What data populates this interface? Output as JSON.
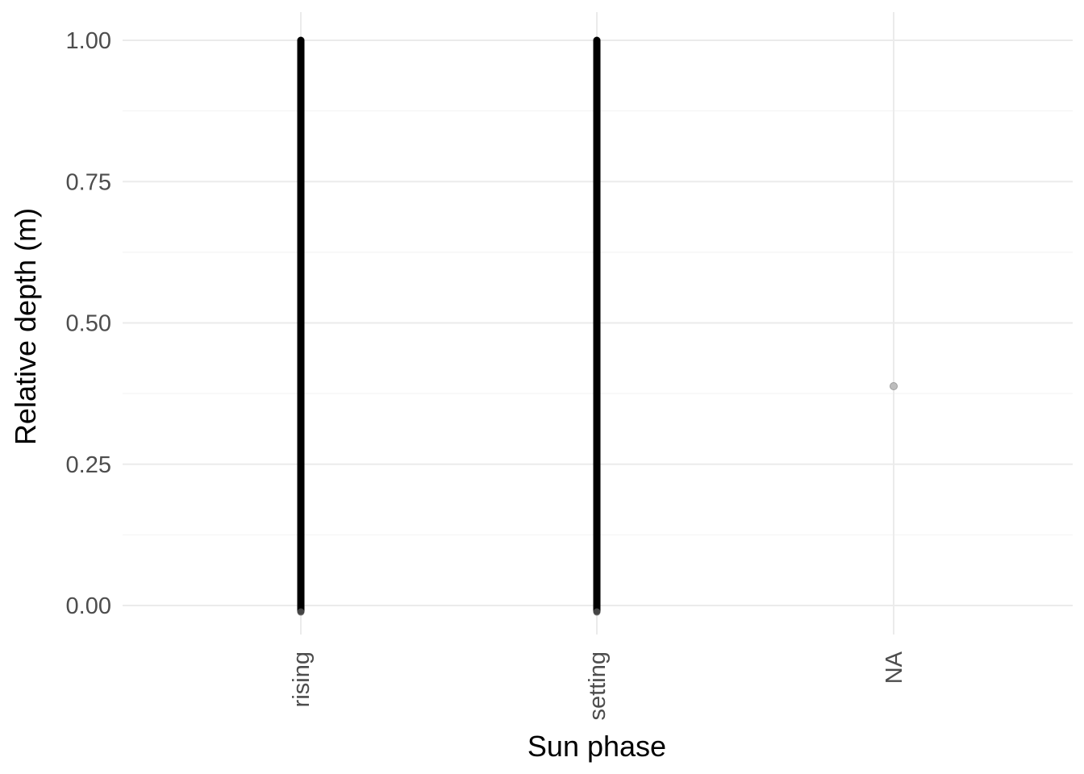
{
  "chart_data": {
    "type": "scatter",
    "title": "",
    "xlabel": "Sun phase",
    "ylabel": "Relative depth (m)",
    "categories": [
      "rising",
      "setting",
      "NA"
    ],
    "ylim": [
      -0.05,
      1.05
    ],
    "y_ticks": [
      "0.00",
      "0.25",
      "0.50",
      "0.75",
      "1.00"
    ],
    "y_tick_values": [
      0,
      0.25,
      0.5,
      0.75,
      1
    ],
    "x_tick_rotation": "vertical",
    "grid": true,
    "legend": "none",
    "series": [
      {
        "category": "rising",
        "y_min": -0.01,
        "y_max": 1.0,
        "dense": true,
        "color": "#000000"
      },
      {
        "category": "setting",
        "y_min": -0.01,
        "y_max": 1.0,
        "dense": true,
        "color": "#000000"
      },
      {
        "category": "NA",
        "points": [
          0.388
        ],
        "dense": false,
        "color": "#bdbdbd"
      }
    ]
  }
}
